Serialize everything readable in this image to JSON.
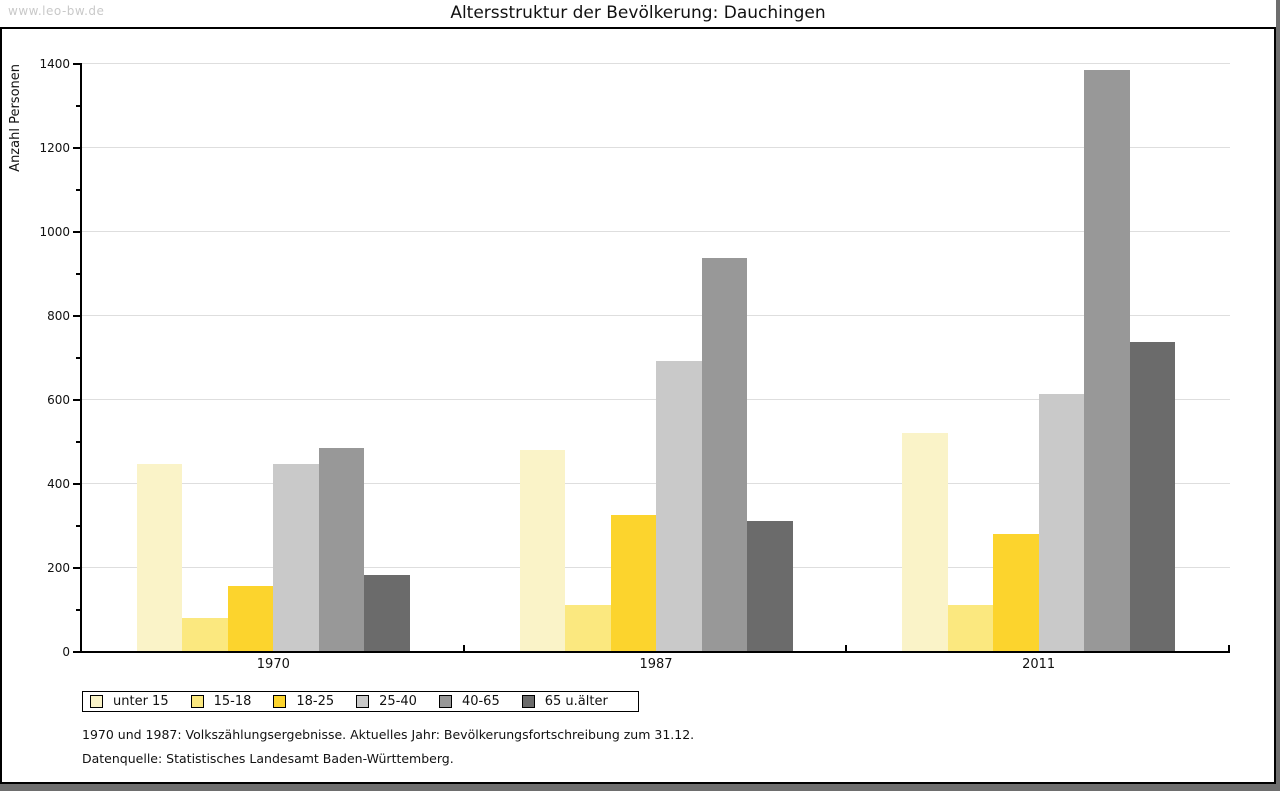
{
  "watermark": "www.leo-bw.de",
  "title": "Altersstruktur der Bevölkerung: Dauchingen",
  "footnotes": {
    "line1": "1970 und 1987: Volkszählungsergebnisse. Aktuelles Jahr: Bevölkerungsfortschreibung zum 31.12.",
    "line2": "Datenquelle: Statistisches Landesamt Baden-Württemberg."
  },
  "colors": {
    "background": "#ffffff",
    "outer_border_shadow": "#6e6e6e",
    "frame_border": "#000000",
    "gridline": "#dedede",
    "watermark": "#c9c9c9"
  },
  "chart_data": {
    "type": "bar",
    "title": "Altersstruktur der Bevölkerung: Dauchingen",
    "xlabel": "",
    "ylabel": "Anzahl Personen",
    "categories": [
      "1970",
      "1987",
      "2011"
    ],
    "series": [
      {
        "name": "unter 15",
        "color": "#faf3c8",
        "values": [
          445,
          478,
          519
        ]
      },
      {
        "name": "15-18",
        "color": "#fbe87f",
        "values": [
          78,
          110,
          110
        ]
      },
      {
        "name": "18-25",
        "color": "#fcd42d",
        "values": [
          155,
          324,
          278
        ]
      },
      {
        "name": "25-40",
        "color": "#c9c9c9",
        "values": [
          445,
          690,
          613
        ]
      },
      {
        "name": "40-65",
        "color": "#989898",
        "values": [
          484,
          935,
          1384
        ]
      },
      {
        "name": "65 u.älter",
        "color": "#6b6b6b",
        "values": [
          182,
          309,
          736
        ]
      }
    ],
    "ylim": [
      0,
      1400
    ],
    "ytick_step": 200,
    "ytick_labels": [
      "0",
      "200",
      "400",
      "600",
      "800",
      "1000",
      "1200",
      "1400"
    ],
    "yminor_step": 100,
    "grid": true,
    "legend_position": "bottom"
  }
}
